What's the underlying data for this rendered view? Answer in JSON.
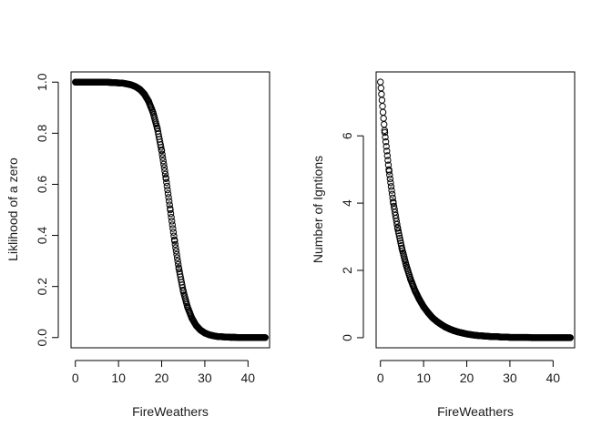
{
  "chart_data": [
    {
      "type": "scatter",
      "title": "",
      "xlabel": "FireWeathers",
      "ylabel": "Liklihood of a zero",
      "xlim": [
        -1,
        45
      ],
      "ylim": [
        -0.04,
        1.04
      ],
      "xticks": [
        0,
        10,
        20,
        30,
        40
      ],
      "yticks": [
        0.0,
        0.2,
        0.4,
        0.6,
        0.8,
        1.0
      ],
      "ytick_labels": [
        "0.0",
        "0.2",
        "0.4",
        "0.6",
        "0.8",
        "1.0"
      ],
      "grid": false,
      "legend": "none",
      "marker": "open circle",
      "color": "#000000",
      "x": [
        0,
        1,
        2,
        3,
        4,
        5,
        6,
        7,
        8,
        9,
        10,
        11,
        12,
        13,
        14,
        15,
        16,
        17,
        18,
        19,
        20,
        21,
        22,
        23,
        24,
        25,
        26,
        27,
        28,
        29,
        30,
        31,
        32,
        33,
        34,
        35,
        36,
        37,
        38,
        39,
        40,
        41,
        42,
        43,
        44
      ],
      "y": [
        1.0,
        1.0,
        1.0,
        1.0,
        1.0,
        1.0,
        1.0,
        1.0,
        0.999,
        0.998,
        0.997,
        0.996,
        0.993,
        0.989,
        0.982,
        0.971,
        0.953,
        0.924,
        0.881,
        0.818,
        0.731,
        0.622,
        0.5,
        0.378,
        0.269,
        0.182,
        0.119,
        0.076,
        0.047,
        0.029,
        0.018,
        0.011,
        0.007,
        0.004,
        0.003,
        0.002,
        0.001,
        0.001,
        0.0,
        0.0,
        0.0,
        0.0,
        0.0,
        0.0,
        0.0
      ]
    },
    {
      "type": "scatter",
      "title": "",
      "xlabel": "FireWeathers",
      "ylabel": "Number of Igntions",
      "xlim": [
        -1,
        45
      ],
      "ylim": [
        -0.3,
        7.9
      ],
      "xticks": [
        0,
        10,
        20,
        30,
        40
      ],
      "yticks": [
        0,
        2,
        4,
        6
      ],
      "ytick_labels": [
        "0",
        "2",
        "4",
        "6"
      ],
      "grid": false,
      "legend": "none",
      "marker": "open circle",
      "color": "#000000",
      "x": [
        0,
        1,
        2,
        3,
        4,
        5,
        6,
        7,
        8,
        9,
        10,
        11,
        12,
        13,
        14,
        15,
        16,
        17,
        18,
        19,
        20,
        21,
        22,
        23,
        24,
        25,
        26,
        27,
        28,
        29,
        30,
        31,
        32,
        33,
        34,
        35,
        36,
        37,
        38,
        39,
        40,
        41,
        42,
        43,
        44
      ],
      "y": [
        7.6,
        6.1,
        4.95,
        4.0,
        3.25,
        2.64,
        2.14,
        1.73,
        1.4,
        1.14,
        0.92,
        0.75,
        0.6,
        0.49,
        0.4,
        0.32,
        0.26,
        0.21,
        0.17,
        0.14,
        0.11,
        0.09,
        0.07,
        0.06,
        0.05,
        0.04,
        0.03,
        0.03,
        0.02,
        0.02,
        0.01,
        0.01,
        0.01,
        0.01,
        0.01,
        0.0,
        0.0,
        0.0,
        0.0,
        0.0,
        0.0,
        0.0,
        0.0,
        0.0,
        0.0
      ]
    }
  ]
}
